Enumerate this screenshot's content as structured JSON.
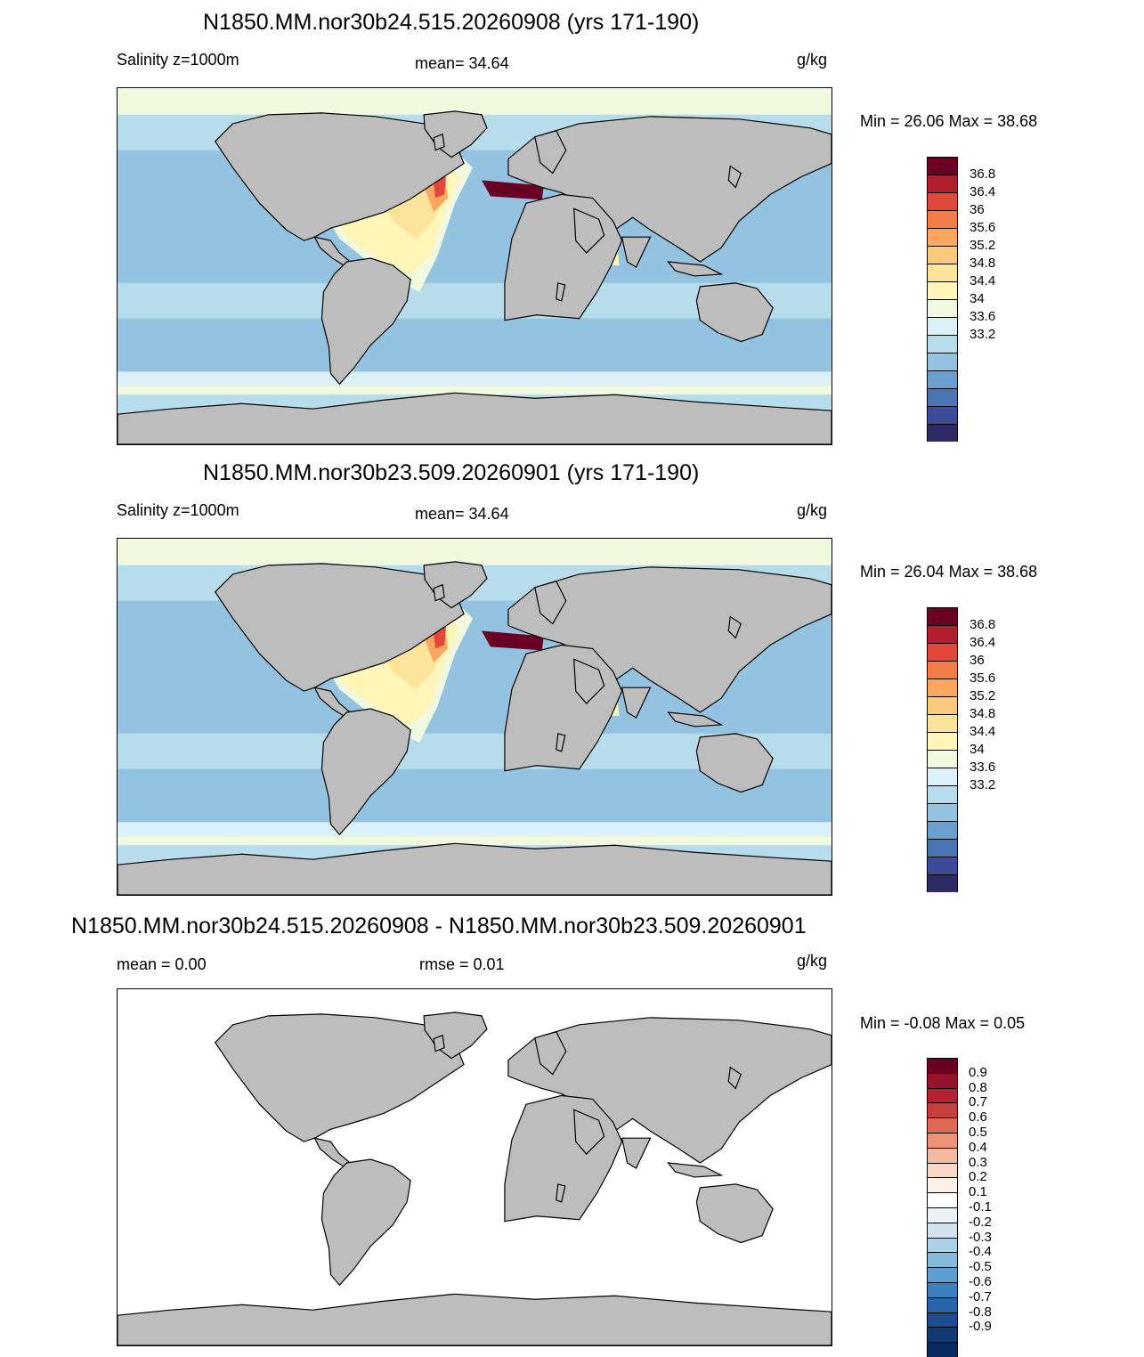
{
  "colors": {
    "land": "#bdbdbd",
    "coast": "#000000",
    "salinity_scale": [
      "#2d2a66",
      "#3c4c98",
      "#4b74b5",
      "#6a9fd0",
      "#93c3e0",
      "#b7dcec",
      "#dcf0f7",
      "#f1f9df",
      "#fff6b8",
      "#fde49b",
      "#fdc97f",
      "#fca761",
      "#f37d49",
      "#e0493a",
      "#b11f2f",
      "#6b0025"
    ],
    "diff_scale": [
      "#6b0025",
      "#96132e",
      "#b42132",
      "#ca3d3d",
      "#dc6a55",
      "#eb9478",
      "#f5ba9e",
      "#fbd8c3",
      "#fdf0e6",
      "#ffffff",
      "#eaf2f8",
      "#cfe4f0",
      "#acd0e6",
      "#86badb",
      "#5e9dcf",
      "#3c80be",
      "#2a64a8",
      "#1b4d8e",
      "#0f3a74",
      "#082a5d"
    ]
  },
  "panels": [
    {
      "title": "N1850.MM.nor30b24.515.20260908 (yrs 171-190)",
      "left_label": "Salinity z=1000m",
      "center_label": "mean=  34.64",
      "units": "g/kg",
      "minmax": "Min =  26.06 Max =  38.68",
      "colorbar_labels": [
        "36.8",
        "36.4",
        "36",
        "35.6",
        "35.2",
        "34.8",
        "34.4",
        "34",
        "33.6",
        "33.2"
      ]
    },
    {
      "title": "N1850.MM.nor30b23.509.20260901 (yrs 171-190)",
      "left_label": "Salinity z=1000m",
      "center_label": "mean=  34.64",
      "units": "g/kg",
      "minmax": "Min =  26.04 Max =  38.68",
      "colorbar_labels": [
        "36.8",
        "36.4",
        "36",
        "35.6",
        "35.2",
        "34.8",
        "34.4",
        "34",
        "33.6",
        "33.2"
      ]
    },
    {
      "title": "N1850.MM.nor30b24.515.20260908 - N1850.MM.nor30b23.509.20260901",
      "left_label": "mean =   0.00",
      "center_label": "rmse =   0.01",
      "units": "g/kg",
      "minmax": "Min =  -0.08 Max =   0.05",
      "colorbar_labels": [
        "0.9",
        "0.8",
        "0.7",
        "0.6",
        "0.5",
        "0.4",
        "0.3",
        "0.2",
        "0.1",
        "-0.1",
        "-0.2",
        "-0.3",
        "-0.4",
        "-0.5",
        "-0.6",
        "-0.7",
        "-0.8",
        "-0.9"
      ]
    }
  ]
}
